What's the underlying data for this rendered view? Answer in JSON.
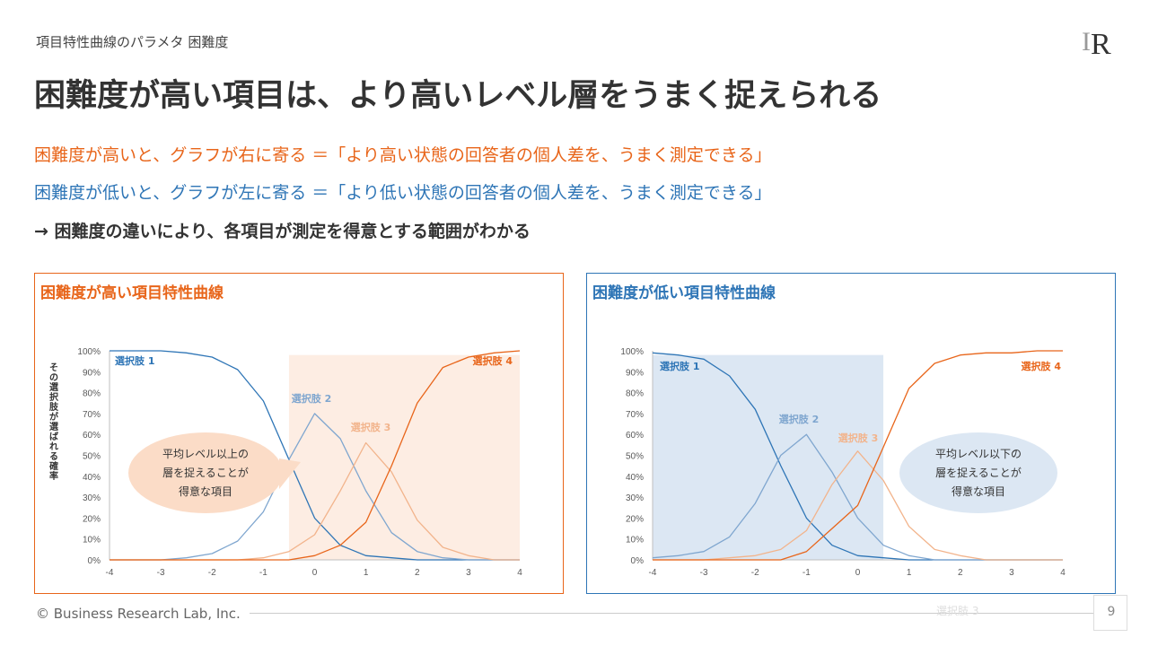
{
  "header": {
    "breadcrumb": "項目特性曲線のパラメタ 困難度",
    "title": "困難度が高い項目は、より高いレベル層をうまく捉えられる",
    "line_high": "困難度が高いと、グラフが右に寄る ＝「より高い状態の回答者の個人差を、うまく測定できる」",
    "line_low": "困難度が低いと、グラフが左に寄る ＝「より低い状態の回答者の個人差を、うまく測定できる」",
    "line_conclusion": "→ 困難度の違いにより、各項目が測定を得意とする範囲がわかる"
  },
  "colors": {
    "orange": "#E8651A",
    "blue": "#2E75B6",
    "choice1": "#2E75B6",
    "choice2": "#7FA6CF",
    "choice3": "#F2B48C",
    "choice4": "#E8651A",
    "shade_high": "#FDEDE3",
    "shade_low": "#DCE7F3",
    "bubble_high": "#FBDCC7",
    "bubble_low": "#DCE7F3"
  },
  "chart_data": [
    {
      "type": "line",
      "title": "困難度が高い項目特性曲線",
      "ylabel": "その選択肢が選ばれる確率",
      "xlim": [
        -4,
        4
      ],
      "ylim": [
        0,
        1
      ],
      "x_ticks": [
        "-4",
        "-3",
        "-2",
        "-1",
        "0",
        "1",
        "2",
        "3",
        "4"
      ],
      "y_ticks": [
        "0%",
        "10%",
        "20%",
        "30%",
        "40%",
        "50%",
        "60%",
        "70%",
        "80%",
        "90%",
        "100%"
      ],
      "series": [
        {
          "name": "選択肢 1",
          "x": [
            -4,
            -3.5,
            -3,
            -2.5,
            -2,
            -1.5,
            -1,
            -0.5,
            0,
            0.5,
            1,
            1.5,
            2,
            2.5,
            3,
            3.5,
            4
          ],
          "values": [
            1.0,
            1.0,
            1.0,
            0.99,
            0.97,
            0.91,
            0.76,
            0.48,
            0.2,
            0.07,
            0.02,
            0.01,
            0,
            0,
            0,
            0,
            0
          ]
        },
        {
          "name": "選択肢 2",
          "x": [
            -4,
            -3.5,
            -3,
            -2.5,
            -2,
            -1.5,
            -1,
            -0.5,
            0,
            0.5,
            1,
            1.5,
            2,
            2.5,
            3,
            3.5,
            4
          ],
          "values": [
            0,
            0,
            0,
            0.01,
            0.03,
            0.09,
            0.23,
            0.48,
            0.7,
            0.58,
            0.33,
            0.13,
            0.04,
            0.01,
            0,
            0,
            0
          ]
        },
        {
          "name": "選択肢 3",
          "x": [
            -4,
            -3.5,
            -3,
            -2.5,
            -2,
            -1.5,
            -1,
            -0.5,
            0,
            0.5,
            1,
            1.5,
            2,
            2.5,
            3,
            3.5,
            4
          ],
          "values": [
            0,
            0,
            0,
            0,
            0,
            0,
            0.01,
            0.04,
            0.12,
            0.33,
            0.56,
            0.42,
            0.19,
            0.06,
            0.02,
            0,
            0
          ]
        },
        {
          "name": "選択肢 4",
          "x": [
            -4,
            -3.5,
            -3,
            -2.5,
            -2,
            -1.5,
            -1,
            -0.5,
            0,
            0.5,
            1,
            1.5,
            2,
            2.5,
            3,
            3.5,
            4
          ],
          "values": [
            0,
            0,
            0,
            0,
            0,
            0,
            0,
            0,
            0.02,
            0.07,
            0.18,
            0.45,
            0.75,
            0.92,
            0.97,
            0.99,
            1.0
          ]
        }
      ],
      "shaded_range": [
        -0.5,
        4
      ],
      "annotation": [
        "平均レベル以上の",
        "層を捉えることが",
        "得意な項目"
      ]
    },
    {
      "type": "line",
      "title": "困難度が低い項目特性曲線",
      "xlim": [
        -4,
        4
      ],
      "ylim": [
        0,
        1
      ],
      "x_ticks": [
        "-4",
        "-3",
        "-2",
        "-1",
        "0",
        "1",
        "2",
        "3",
        "4"
      ],
      "y_ticks": [
        "0%",
        "10%",
        "20%",
        "30%",
        "40%",
        "50%",
        "60%",
        "70%",
        "80%",
        "90%",
        "100%"
      ],
      "series": [
        {
          "name": "選択肢 1",
          "x": [
            -4,
            -3.5,
            -3,
            -2.5,
            -2,
            -1.5,
            -1,
            -0.5,
            0,
            0.5,
            1,
            1.5,
            2,
            2.5,
            3,
            3.5,
            4
          ],
          "values": [
            0.99,
            0.98,
            0.96,
            0.88,
            0.72,
            0.45,
            0.2,
            0.07,
            0.02,
            0.01,
            0,
            0,
            0,
            0,
            0,
            0,
            0
          ]
        },
        {
          "name": "選択肢 2",
          "x": [
            -4,
            -3.5,
            -3,
            -2.5,
            -2,
            -1.5,
            -1,
            -0.5,
            0,
            0.5,
            1,
            1.5,
            2,
            2.5,
            3,
            3.5,
            4
          ],
          "values": [
            0.01,
            0.02,
            0.04,
            0.11,
            0.27,
            0.5,
            0.6,
            0.42,
            0.2,
            0.07,
            0.02,
            0,
            0,
            0,
            0,
            0,
            0
          ]
        },
        {
          "name": "選択肢 3",
          "x": [
            -4,
            -3.5,
            -3,
            -2.5,
            -2,
            -1.5,
            -1,
            -0.5,
            0,
            0.5,
            1,
            1.5,
            2,
            2.5,
            3,
            3.5,
            4
          ],
          "values": [
            0,
            0,
            0,
            0.01,
            0.02,
            0.05,
            0.14,
            0.36,
            0.52,
            0.38,
            0.16,
            0.05,
            0.02,
            0,
            0,
            0,
            0
          ]
        },
        {
          "name": "選択肢 4",
          "x": [
            -4,
            -3.5,
            -3,
            -2.5,
            -2,
            -1.5,
            -1,
            -0.5,
            0,
            0.5,
            1,
            1.5,
            2,
            2.5,
            3,
            3.5,
            4
          ],
          "values": [
            0,
            0,
            0,
            0,
            0,
            0,
            0.04,
            0.15,
            0.26,
            0.54,
            0.82,
            0.94,
            0.98,
            0.99,
            0.99,
            1.0,
            1.0
          ]
        }
      ],
      "shaded_range": [
        -4,
        0.5
      ],
      "annotation": [
        "平均レベル以下の",
        "層を捉えることが",
        "得意な項目"
      ]
    }
  ],
  "footer": {
    "copyright": "© Business Research Lab, Inc.",
    "ghost_label": "選択肢 3",
    "page_number": "9"
  }
}
